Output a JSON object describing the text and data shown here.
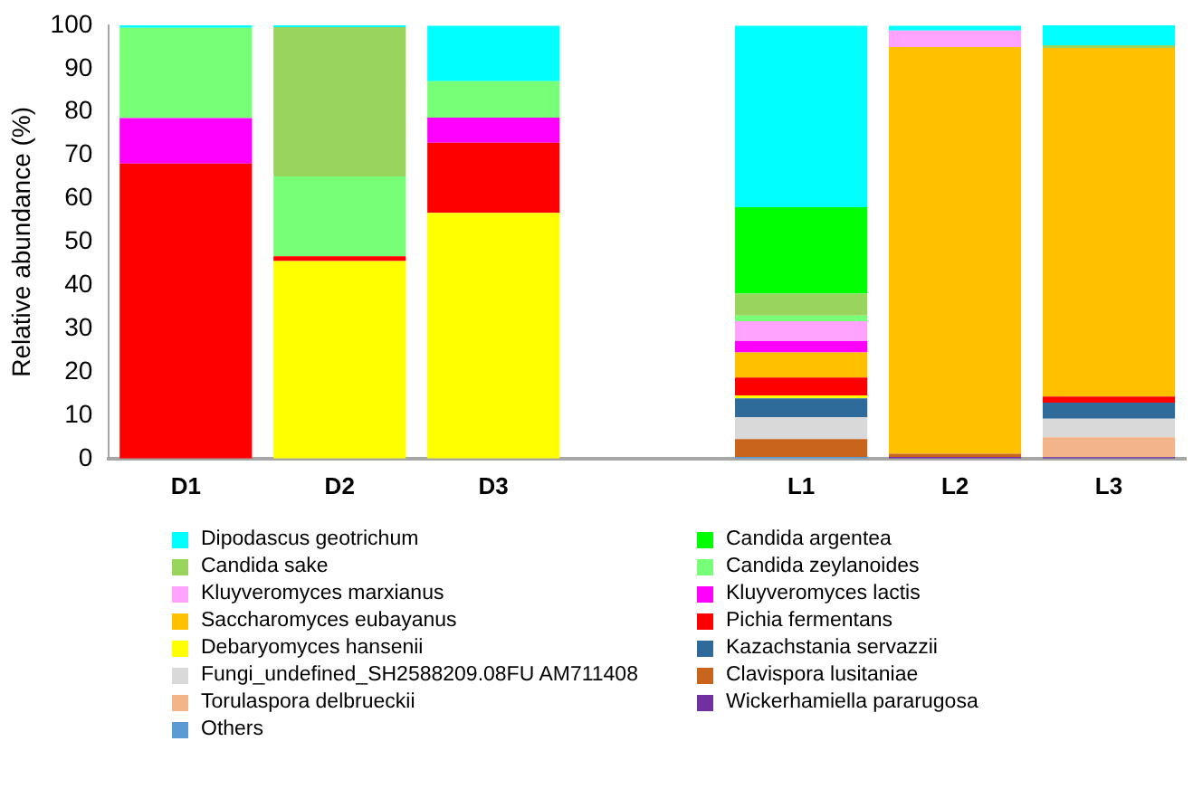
{
  "chart_data": {
    "type": "bar",
    "stacked": true,
    "ylabel": "Relative abundance (%)",
    "categories": [
      "D1",
      "D2",
      "D3",
      null,
      "L1",
      "L2",
      "L3"
    ],
    "ylim": [
      0,
      100
    ],
    "yticks": [
      0,
      10,
      20,
      30,
      40,
      50,
      60,
      70,
      80,
      90,
      100
    ],
    "grid": false,
    "legend": "bottom",
    "series": [
      {
        "name": "Others",
        "color": "#5b9bd5",
        "values": [
          0,
          0,
          0,
          null,
          0.4,
          0,
          0
        ]
      },
      {
        "name": "Wickerhamiella pararugosa",
        "color": "#7030a0",
        "values": [
          0,
          0,
          0,
          null,
          0,
          0.4,
          0.3
        ]
      },
      {
        "name": "Torulaspora delbrueckii",
        "color": "#f4b48a",
        "values": [
          0,
          0,
          0,
          null,
          0,
          0,
          4.6
        ]
      },
      {
        "name": "Clavispora lusitaniae",
        "color": "#c8641c",
        "values": [
          0,
          0,
          0,
          null,
          4.1,
          0.7,
          0
        ]
      },
      {
        "name": "Fungi_undefined_SH2588209.08FU AM711408",
        "color": "#d9d9d9",
        "values": [
          0,
          0,
          0,
          null,
          5.0,
          0,
          4.3
        ]
      },
      {
        "name": "Kazachstania servazzii",
        "color": "#2e6a9a",
        "values": [
          0,
          0,
          0,
          null,
          4.4,
          0,
          3.7
        ]
      },
      {
        "name": "Debaryomyces hansenii",
        "color": "#ffff00",
        "values": [
          0,
          45.6,
          56.7,
          null,
          0.7,
          0,
          0
        ]
      },
      {
        "name": "Pichia fermentans",
        "color": "#ff0000",
        "values": [
          68.1,
          1.1,
          16.2,
          null,
          4.1,
          0,
          1.4
        ]
      },
      {
        "name": "Saccharomyces eubayanus",
        "color": "#ffc000",
        "values": [
          0,
          0,
          0,
          null,
          5.8,
          93.9,
          80.5
        ]
      },
      {
        "name": "Kluyveromyces lactis",
        "color": "#ff00ff",
        "values": [
          10.5,
          0,
          5.8,
          null,
          2.6,
          0,
          0
        ]
      },
      {
        "name": "Kluyveromyces marxianus",
        "color": "#ffa3ff",
        "values": [
          0,
          0,
          0,
          null,
          4.6,
          3.8,
          0
        ]
      },
      {
        "name": "Candida zeylanoides",
        "color": "#77ff77",
        "values": [
          20.8,
          18.4,
          8.4,
          null,
          1.3,
          0,
          0
        ]
      },
      {
        "name": "Candida sake",
        "color": "#99d45c",
        "values": [
          0,
          34.5,
          0,
          null,
          5.1,
          0,
          0.6
        ]
      },
      {
        "name": "Candida argentea",
        "color": "#00ff00",
        "values": [
          0,
          0,
          0,
          null,
          19.9,
          0,
          0
        ]
      },
      {
        "name": "Dipodascus geotrichum",
        "color": "#00ffff",
        "values": [
          0.6,
          0.4,
          12.8,
          null,
          41.9,
          1.1,
          4.6
        ]
      }
    ]
  }
}
